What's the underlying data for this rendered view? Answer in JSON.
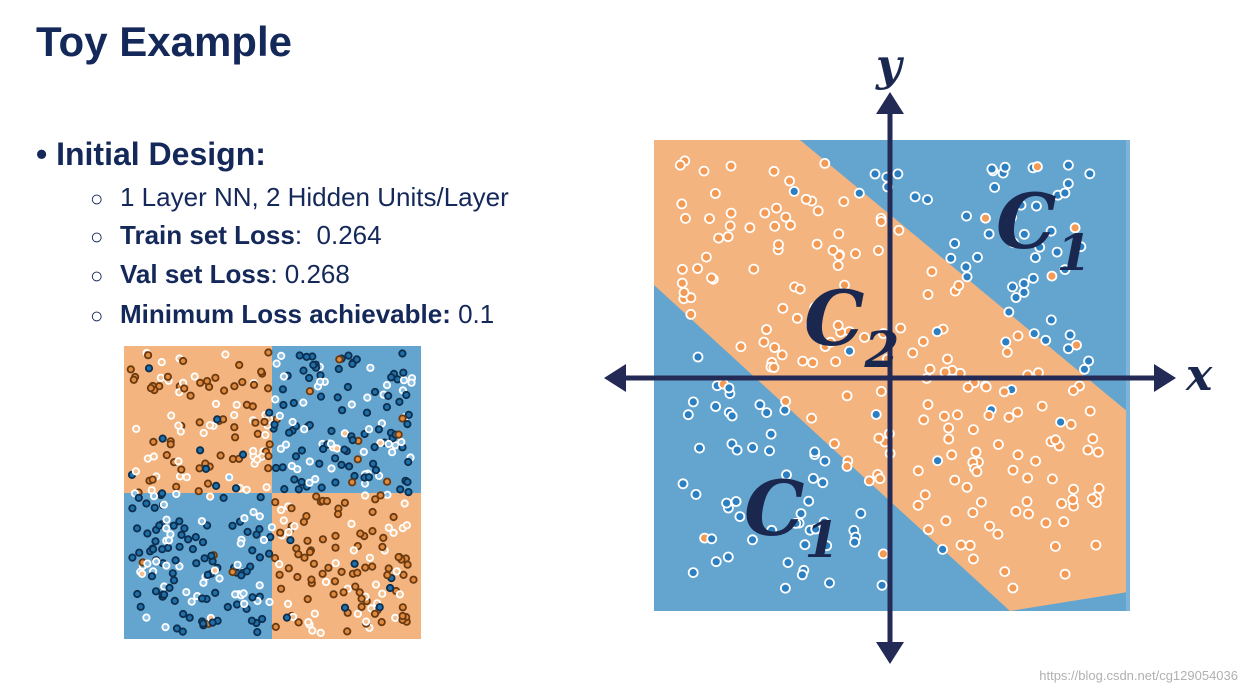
{
  "header": {
    "title": "Toy Example"
  },
  "bullet": "Initial Design:",
  "items": [
    {
      "text": "1 Layer NN, 2 Hidden Units/Layer"
    },
    {
      "bold": "Train set Loss",
      "text": ":  0.264"
    },
    {
      "bold": "Val set Loss",
      "text": ": 0.268"
    },
    {
      "bold": "Minimum Loss achievable:",
      "text": " 0.1"
    }
  ],
  "figure": {
    "y_label": "y",
    "x_label": "x",
    "regions": [
      {
        "letter": "C",
        "subscript": "1"
      },
      {
        "letter": "C",
        "subscript": "2"
      },
      {
        "letter": "C",
        "subscript": "1"
      }
    ]
  },
  "watermark": "https://blog.csdn.net/cg129054036"
}
